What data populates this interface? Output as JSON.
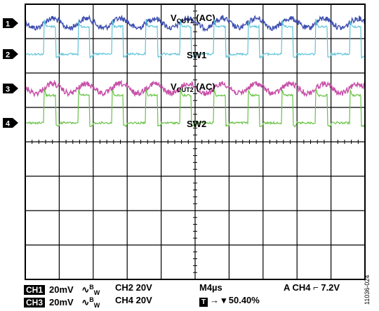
{
  "chart_data": {
    "type": "line",
    "grid": true,
    "horizontal_divisions": 10,
    "vertical_divisions": 8,
    "channels": [
      {
        "marker": "1",
        "label_main": "V",
        "label_sub": "OUT1",
        "label_suffix": " (AC)",
        "color": "#3e4fb0",
        "kind": "ripple",
        "cycles": 10,
        "amplitude_div": 0.14,
        "noise_div": 0.08
      },
      {
        "marker": "2",
        "label_main": "SW1",
        "color": "#5ec4d9",
        "kind": "switching",
        "cycles": 10,
        "amplitude_div": 0.8
      },
      {
        "marker": "3",
        "label_main": "V",
        "label_sub": "OUT2",
        "label_suffix": " (AC)",
        "color": "#c850a8",
        "kind": "ripple",
        "cycles": 10,
        "amplitude_div": 0.14,
        "noise_div": 0.08
      },
      {
        "marker": "4",
        "label_main": "SW2",
        "color": "#68c246",
        "kind": "switching",
        "cycles": 10,
        "amplitude_div": 0.8
      }
    ]
  },
  "status": {
    "row1": {
      "channel": "CH1",
      "volts": "20mV",
      "bw_symbol": "∿",
      "bw_B": "B",
      "bw_W": "W",
      "ch_b": "CH2 20V",
      "timebase": "M4µs",
      "trigger": "A  CH4 ⌐ 7.2V"
    },
    "row2": {
      "channel": "CH3",
      "volts": "20mV",
      "bw_symbol": "∿",
      "bw_B": "B",
      "bw_W": "W",
      "ch_b": "CH4 20V",
      "tmarker": "T",
      "position": "→ ▾ 50.40%"
    }
  },
  "figure_id": "11036-024"
}
